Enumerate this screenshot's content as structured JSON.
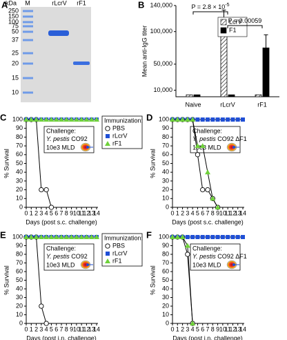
{
  "gel": {
    "panel": "A",
    "unit": "kDa",
    "lanes": [
      "M",
      "rLcrV",
      "rF1"
    ],
    "markers": [
      250,
      150,
      100,
      75,
      50,
      37,
      25,
      20,
      15,
      10
    ]
  },
  "chart_data": [
    {
      "type": "bar",
      "panel": "B",
      "ylabel": "Mean anti-IgG titer",
      "categories": [
        "Naive",
        "rLcrV",
        "rF1"
      ],
      "series": [
        {
          "name": "LcrV",
          "color": "#ffffff",
          "pattern": "hatch",
          "values": [
            3000,
            100000,
            3000
          ],
          "errors": [
            null,
            33000,
            null
          ]
        },
        {
          "name": "F1",
          "color": "#000000",
          "values": [
            3000,
            3000,
            75000
          ],
          "errors": [
            null,
            null,
            20000
          ]
        }
      ],
      "ylim": [
        0,
        140000
      ],
      "yticks": [
        {
          "value": 10000,
          "label": "10,000"
        },
        {
          "value": 50000,
          "label": "50,000"
        },
        {
          "value": 100000,
          "label": "100,000"
        },
        {
          "value": 140000,
          "label": "140,000"
        }
      ],
      "legend": "top-right",
      "annotations": [
        {
          "text": "P = 2.8 × 10",
          "superscript": "-5"
        },
        {
          "text": "P = 0.00059"
        }
      ]
    },
    {
      "type": "line",
      "panel": "C",
      "xlabel": "Days (post s.c. challenge)",
      "ylabel": "% Survival",
      "x": [
        0,
        1,
        2,
        3,
        4,
        5,
        6,
        7,
        8,
        9,
        10,
        11,
        12,
        13,
        14
      ],
      "xlim": [
        0,
        14
      ],
      "xticks": [
        0,
        1,
        2,
        3,
        4,
        5,
        6,
        7,
        8,
        9,
        10,
        11,
        12,
        13,
        14
      ],
      "ylim": [
        0,
        100
      ],
      "yticks": [
        0,
        10,
        20,
        30,
        40,
        50,
        60,
        70,
        80,
        90,
        100
      ],
      "legend": "right",
      "legend_title": "Immunization:",
      "challenge": {
        "label": "Challenge:",
        "species": "Y. pestis",
        "strain": "CO92",
        "dose": "10e3 MLD"
      },
      "series": [
        {
          "name": "PBS",
          "color": "#ffffff",
          "marker": "circle",
          "values": [
            100,
            100,
            100,
            20,
            20,
            0,
            null,
            null,
            null,
            null,
            null,
            null,
            null,
            null,
            null
          ]
        },
        {
          "name": "rLcrV",
          "color": "#1f4fd6",
          "marker": "square",
          "values": [
            100,
            100,
            100,
            100,
            100,
            100,
            100,
            100,
            100,
            100,
            100,
            100,
            100,
            100,
            100
          ]
        },
        {
          "name": "rF1",
          "color": "#6fd13a",
          "marker": "triangle",
          "values": [
            100,
            100,
            100,
            100,
            100,
            100,
            100,
            100,
            100,
            100,
            100,
            100,
            100,
            100,
            100
          ]
        }
      ]
    },
    {
      "type": "line",
      "panel": "D",
      "xlabel": "Days (post s.c. challenge)",
      "ylabel": "% Survival",
      "x": [
        0,
        1,
        2,
        3,
        4,
        5,
        6,
        7,
        8,
        9,
        10,
        11,
        12,
        13,
        14
      ],
      "xlim": [
        0,
        14
      ],
      "xticks": [
        0,
        1,
        2,
        3,
        4,
        5,
        6,
        7,
        8,
        9,
        10,
        11,
        12,
        13,
        14
      ],
      "ylim": [
        0,
        100
      ],
      "yticks": [
        0,
        10,
        20,
        30,
        40,
        50,
        60,
        70,
        80,
        90,
        100
      ],
      "challenge": {
        "label": "Challenge:",
        "species": "Y. pestis",
        "strain": "CO92 ΔF1",
        "dose": "10e3 MLD"
      },
      "series": [
        {
          "name": "PBS",
          "color": "#ffffff",
          "marker": "circle",
          "values": [
            100,
            100,
            100,
            100,
            100,
            60,
            20,
            20,
            10,
            0,
            null,
            null,
            null,
            null,
            null
          ]
        },
        {
          "name": "rLcrV",
          "color": "#1f4fd6",
          "marker": "square",
          "values": [
            100,
            100,
            100,
            100,
            100,
            100,
            100,
            100,
            100,
            100,
            100,
            100,
            100,
            100,
            100
          ]
        },
        {
          "name": "rF1",
          "color": "#6fd13a",
          "marker": "triangle",
          "values": [
            100,
            100,
            100,
            100,
            100,
            70,
            70,
            40,
            10,
            0,
            null,
            null,
            null,
            null,
            null
          ]
        }
      ]
    },
    {
      "type": "line",
      "panel": "E",
      "xlabel": "Days (post i.n. challenge)",
      "ylabel": "% Survival",
      "x": [
        0,
        1,
        2,
        3,
        4,
        5,
        6,
        7,
        8,
        9,
        10,
        11,
        12,
        13,
        14
      ],
      "xlim": [
        0,
        14
      ],
      "xticks": [
        0,
        1,
        2,
        3,
        4,
        5,
        6,
        7,
        8,
        9,
        10,
        11,
        12,
        13,
        14
      ],
      "ylim": [
        0,
        100
      ],
      "yticks": [
        0,
        10,
        20,
        30,
        40,
        50,
        60,
        70,
        80,
        90,
        100
      ],
      "legend": "right",
      "legend_title": "Immunization:",
      "challenge": {
        "label": "Challenge:",
        "species": "Y. pestis",
        "strain": "CO92",
        "dose": "10e3 MLD"
      },
      "series": [
        {
          "name": "PBS",
          "color": "#ffffff",
          "marker": "circle",
          "values": [
            100,
            100,
            100,
            20,
            0,
            null,
            null,
            null,
            null,
            null,
            null,
            null,
            null,
            null,
            null
          ]
        },
        {
          "name": "rLcrV",
          "color": "#1f4fd6",
          "marker": "square",
          "values": [
            100,
            100,
            100,
            100,
            100,
            100,
            100,
            100,
            100,
            100,
            100,
            100,
            100,
            100,
            100
          ]
        },
        {
          "name": "rF1",
          "color": "#6fd13a",
          "marker": "triangle",
          "values": [
            100,
            100,
            100,
            100,
            100,
            100,
            100,
            100,
            100,
            100,
            100,
            100,
            100,
            100,
            100
          ]
        }
      ]
    },
    {
      "type": "line",
      "panel": "F",
      "xlabel": "Days (post i.n. challenge)",
      "ylabel": "% Survival",
      "x": [
        0,
        1,
        2,
        3,
        4,
        5,
        6,
        7,
        8,
        9,
        10,
        11,
        12,
        13,
        14
      ],
      "xlim": [
        0,
        14
      ],
      "xticks": [
        0,
        1,
        2,
        3,
        4,
        5,
        6,
        7,
        8,
        9,
        10,
        11,
        12,
        13,
        14
      ],
      "ylim": [
        0,
        100
      ],
      "yticks": [
        0,
        10,
        20,
        30,
        40,
        50,
        60,
        70,
        80,
        90,
        100
      ],
      "challenge": {
        "label": "Challenge:",
        "species": "Y. pestis",
        "strain": "CO92 ΔF1",
        "dose": "10e3 MLD"
      },
      "series": [
        {
          "name": "PBS",
          "color": "#ffffff",
          "marker": "circle",
          "values": [
            100,
            100,
            100,
            80,
            0,
            null,
            null,
            null,
            null,
            null,
            null,
            null,
            null,
            null,
            null
          ]
        },
        {
          "name": "rLcrV",
          "color": "#1f4fd6",
          "marker": "square",
          "values": [
            100,
            100,
            100,
            100,
            100,
            100,
            100,
            100,
            100,
            100,
            100,
            100,
            100,
            100,
            100
          ]
        },
        {
          "name": "rF1",
          "color": "#6fd13a",
          "marker": "triangle",
          "values": [
            100,
            100,
            100,
            90,
            0,
            null,
            null,
            null,
            null,
            null,
            null,
            null,
            null,
            null,
            null
          ]
        }
      ]
    }
  ]
}
